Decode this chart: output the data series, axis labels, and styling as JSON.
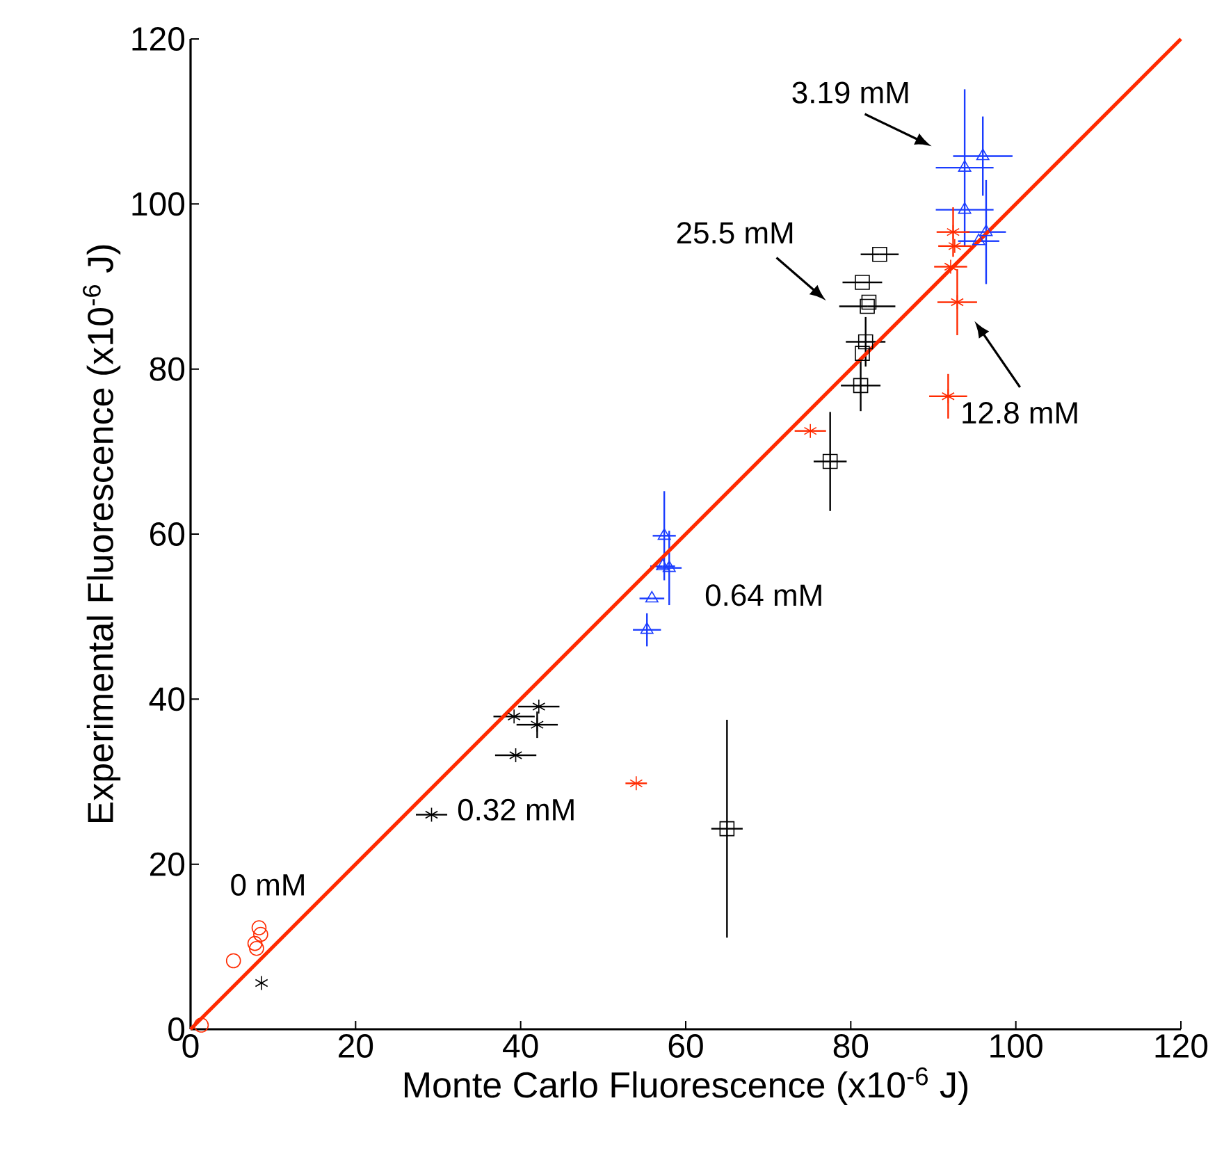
{
  "chart_data": {
    "type": "scatter",
    "xlabel": "Monte Carlo Fluorescence (x10$^{-6}$ J)",
    "ylabel": "Experimental Fluorescence (x10$^{-6}$ J)",
    "xlim": [
      0,
      120
    ],
    "ylim": [
      0,
      120
    ],
    "xticks": [
      0,
      20,
      40,
      60,
      80,
      100,
      120
    ],
    "yticks": [
      0,
      20,
      40,
      60,
      80,
      100,
      120
    ],
    "annotations": [
      "3.19 mM",
      "25.5 mM",
      "12.8 mM",
      "0.64 mM",
      "0.32 mM",
      "0 mM"
    ],
    "series": [
      {
        "color": "#ff2a00",
        "marker": "circle",
        "x": [
          8.3,
          8.5,
          7.8,
          8.0,
          5.2,
          1.3
        ],
        "values": [
          12.3,
          11.5,
          10.4,
          9.8,
          8.3,
          0.5
        ]
      },
      {
        "color": "#000000",
        "marker": "cross",
        "x": [
          42.2,
          39.2,
          42.0,
          39.4,
          29.2,
          8.6
        ],
        "values": [
          39.1,
          37.9,
          36.9,
          33.2,
          26.0,
          5.6
        ],
        "errors": [
          null,
          null,
          1.6,
          null,
          null,
          null
        ],
        "xerrors": [
          2.5,
          2.5,
          2.5,
          2.5,
          1.9,
          null
        ]
      },
      {
        "color": "#1a3cff",
        "marker": "triangle",
        "x": [
          57.4,
          57.2,
          58.0,
          55.9,
          55.3
        ],
        "values": [
          59.8,
          56.1,
          55.9,
          52.2,
          48.4
        ],
        "errors": [
          5.4,
          null,
          4.5,
          null,
          2
        ],
        "xerrors": [
          1.4,
          1.5,
          1.5,
          1.5,
          1.7
        ]
      },
      {
        "color": "#1a3cff",
        "marker": "triangle",
        "x": [
          93.8,
          96.0,
          93.8,
          96.4,
          95.5
        ],
        "values": [
          104.4,
          105.8,
          99.3,
          96.6,
          95.5
        ],
        "errors": [
          9.5,
          4.8,
          null,
          6.3,
          null
        ],
        "xerrors": [
          3.5,
          3.6,
          3.5,
          2.4,
          2.5
        ]
      },
      {
        "color": "#ff2a00",
        "marker": "cross",
        "x": [
          92.4,
          92.6,
          92.1,
          92.9,
          91.8,
          75.1,
          54.0
        ],
        "values": [
          96.6,
          94.9,
          92.4,
          88.1,
          76.7,
          72.5,
          29.8
        ],
        "errors": [
          3,
          null,
          null,
          4,
          2.7,
          null,
          null
        ],
        "xerrors": [
          2,
          2,
          2,
          2.4,
          2.3,
          1.9,
          1.3
        ]
      },
      {
        "color": "#000000",
        "marker": "square",
        "x": [
          83.5,
          81.4,
          82.0,
          82.2,
          81.8,
          81.4,
          81.2,
          77.5,
          65.0
        ],
        "values": [
          93.9,
          90.5,
          87.6,
          88.1,
          83.3,
          81.9,
          78.0,
          68.8,
          24.3
        ],
        "errors": [
          null,
          null,
          null,
          null,
          3,
          null,
          3.1,
          6,
          13.2
        ],
        "xerrors": [
          2.3,
          2.4,
          3.4,
          null,
          2.4,
          null,
          2.4,
          2,
          1.9
        ]
      },
      {
        "type": "line",
        "color": "#ff2a00",
        "marker": "none",
        "x": [
          0,
          120
        ],
        "values": [
          0,
          120
        ]
      }
    ]
  }
}
